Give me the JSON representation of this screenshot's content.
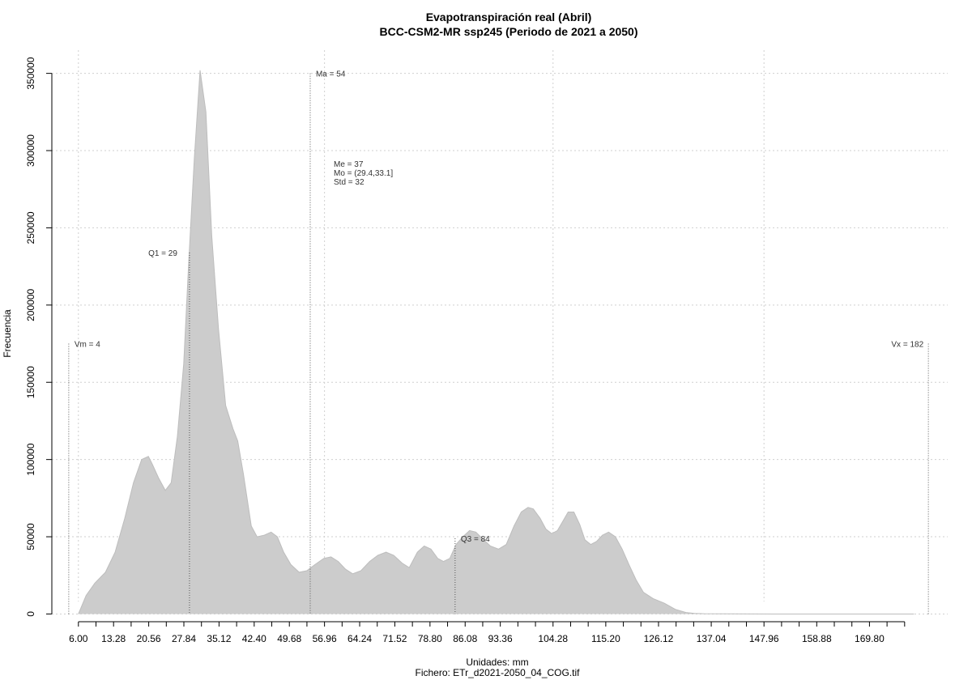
{
  "chart_data": {
    "type": "area",
    "title": "Evapotranspiración real (Abril)",
    "subtitle": "BCC-CSM2-MR ssp245 (Periodo de 2021 a 2050)",
    "xlabel": "Unidades: mm",
    "ylabel": "Frecuencia",
    "caption": "Fichero: ETr_d2021-2050_04_COG.tif",
    "xlim": [
      0.5,
      186
    ],
    "ylim": [
      -5000,
      365000
    ],
    "grid": true,
    "x_ticks": [
      6.0,
      13.28,
      20.56,
      27.84,
      35.12,
      42.4,
      49.68,
      56.96,
      64.24,
      71.52,
      78.8,
      86.08,
      93.36,
      104.28,
      115.2,
      126.12,
      137.04,
      147.96,
      158.88,
      169.8
    ],
    "x_tick_labels": [
      "6.00",
      "13.28",
      "20.56",
      "27.84",
      "35.12",
      "42.40",
      "49.68",
      "56.96",
      "64.24",
      "71.52",
      "78.80",
      "86.08",
      "93.36",
      "104.28",
      "115.20",
      "126.12",
      "137.04",
      "147.96",
      "158.88",
      "169.80"
    ],
    "x_minor_ticks": [
      9.64,
      16.92,
      24.2,
      31.48,
      38.76,
      46.04,
      53.32,
      60.6,
      67.88,
      75.16,
      82.44,
      89.72,
      97.0,
      100.64,
      107.92,
      111.56,
      118.84,
      122.48,
      129.76,
      133.4,
      140.68,
      144.32,
      151.6,
      155.24,
      162.52,
      166.16,
      173.44,
      177.08
    ],
    "y_ticks": [
      0,
      50000,
      100000,
      150000,
      200000,
      250000,
      300000,
      350000
    ],
    "y_tick_labels": [
      "0",
      "50000",
      "100000",
      "150000",
      "200000",
      "250000",
      "300000",
      "350000"
    ],
    "grid_x": [
      6.0,
      56.96,
      104.28,
      147.96
    ],
    "x": [
      6.0,
      7.6,
      9.4,
      11.6,
      13.6,
      15.6,
      17.4,
      19.1,
      20.5,
      21.3,
      22.6,
      24.0,
      25.2,
      26.5,
      27.8,
      28.8,
      30.0,
      31.2,
      32.4,
      33.6,
      35.0,
      36.5,
      38.0,
      39.0,
      40.2,
      41.8,
      43.0,
      44.5,
      45.9,
      47.2,
      48.5,
      50.0,
      51.7,
      53.3,
      55.0,
      56.8,
      58.3,
      59.8,
      61.3,
      62.8,
      64.5,
      66.3,
      68.0,
      69.7,
      71.3,
      73.0,
      74.5,
      76.2,
      77.6,
      79.0,
      80.4,
      81.6,
      82.9,
      84.2,
      85.6,
      87.0,
      88.3,
      89.6,
      91.3,
      93.0,
      94.6,
      96.2,
      97.7,
      99.1,
      100.2,
      101.6,
      102.8,
      104.0,
      105.2,
      106.3,
      107.4,
      108.6,
      109.8,
      110.9,
      112.1,
      113.3,
      114.5,
      115.8,
      117.2,
      118.6,
      120.0,
      121.5,
      123.0,
      125.0,
      127.3,
      129.6,
      131.8,
      133.6,
      135.5,
      140.0,
      150.0,
      160.0,
      170.0,
      179.0
    ],
    "y": [
      0,
      12000,
      20000,
      27000,
      40000,
      62000,
      85000,
      100000,
      102000,
      97000,
      88000,
      80000,
      85000,
      115000,
      162000,
      225000,
      295000,
      352000,
      325000,
      245000,
      185000,
      135000,
      120000,
      112000,
      90000,
      57000,
      50000,
      51000,
      53000,
      50000,
      40000,
      32000,
      27000,
      28000,
      32000,
      36000,
      37000,
      34000,
      29000,
      26000,
      28000,
      34000,
      38000,
      40000,
      38000,
      33000,
      30000,
      40000,
      44000,
      42000,
      36000,
      34000,
      36000,
      45000,
      50000,
      54000,
      53000,
      49000,
      44000,
      42000,
      45000,
      57000,
      66000,
      69000,
      68000,
      62000,
      55000,
      52000,
      54000,
      60000,
      66000,
      66000,
      58000,
      48000,
      45000,
      47000,
      51000,
      53000,
      50000,
      42000,
      32000,
      22000,
      14000,
      10000,
      7000,
      3000,
      1000,
      400,
      200,
      100,
      0,
      0,
      0,
      0
    ],
    "markers": [
      {
        "label": "Vm = 4",
        "x": 4,
        "y_top": 175000
      },
      {
        "label": "Q1 = 29",
        "x": 29,
        "y_top": 234000
      },
      {
        "label": "Ma = 54",
        "x": 54,
        "y_top": 350000
      },
      {
        "label": "Q3 = 84",
        "x": 84,
        "y_top": 49000
      },
      {
        "label": "Vx = 182",
        "x": 182,
        "y_top": 175000
      }
    ],
    "stats_text": [
      "Me = 37",
      "Mo = (29.4,33.1]",
      "Std = 32"
    ],
    "colors": {
      "fill": "#cccccc",
      "grid": "#cfcfcf",
      "axis": "#000000",
      "marker": "#555555"
    }
  }
}
